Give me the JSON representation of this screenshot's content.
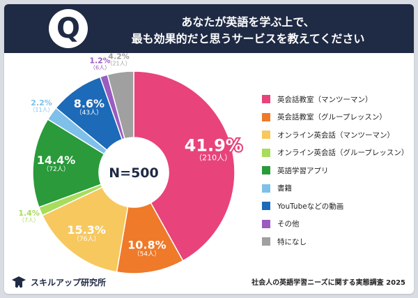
{
  "header": {
    "badge": "Q",
    "title_line1": "あなたが英語を学ぶ上で、",
    "title_line2": "最も効果的だと思うサービスを教えてください"
  },
  "center_label": "N=500",
  "footer": {
    "brand": "スキルアップ研究所",
    "source": "社会人の英語学習ニーズに関する実態調査 2025"
  },
  "chart_data": {
    "type": "pie",
    "donut": true,
    "total_label": "N=500",
    "legend_position": "right",
    "categories": [
      "英会話教室（マンツーマン）",
      "英会話教室（グループレッスン）",
      "オンライン英会話（マンツーマン）",
      "オンライン英会話（グループレッスン）",
      "英語学習アプリ",
      "書籍",
      "YouTubeなどの動画",
      "その他",
      "特になし"
    ],
    "values": [
      41.9,
      10.8,
      15.3,
      1.4,
      14.4,
      2.2,
      8.6,
      1.2,
      4.2
    ],
    "percent_labels": [
      "41.9%",
      "10.8%",
      "15.3%",
      "1.4%",
      "14.4%",
      "2.2%",
      "8.6%",
      "1.2%",
      "4.2%"
    ],
    "counts": [
      "（210人）",
      "（54人）",
      "（76人）",
      "（7人）",
      "（72人）",
      "（11人）",
      "（43人）",
      "（6人）",
      "（21人）"
    ],
    "colors": [
      "#e8437a",
      "#ee7a2a",
      "#f7c85e",
      "#a8dc5c",
      "#2a9a3a",
      "#7ec0ea",
      "#1c6ab8",
      "#9a5cc0",
      "#a0a0a0"
    ]
  }
}
